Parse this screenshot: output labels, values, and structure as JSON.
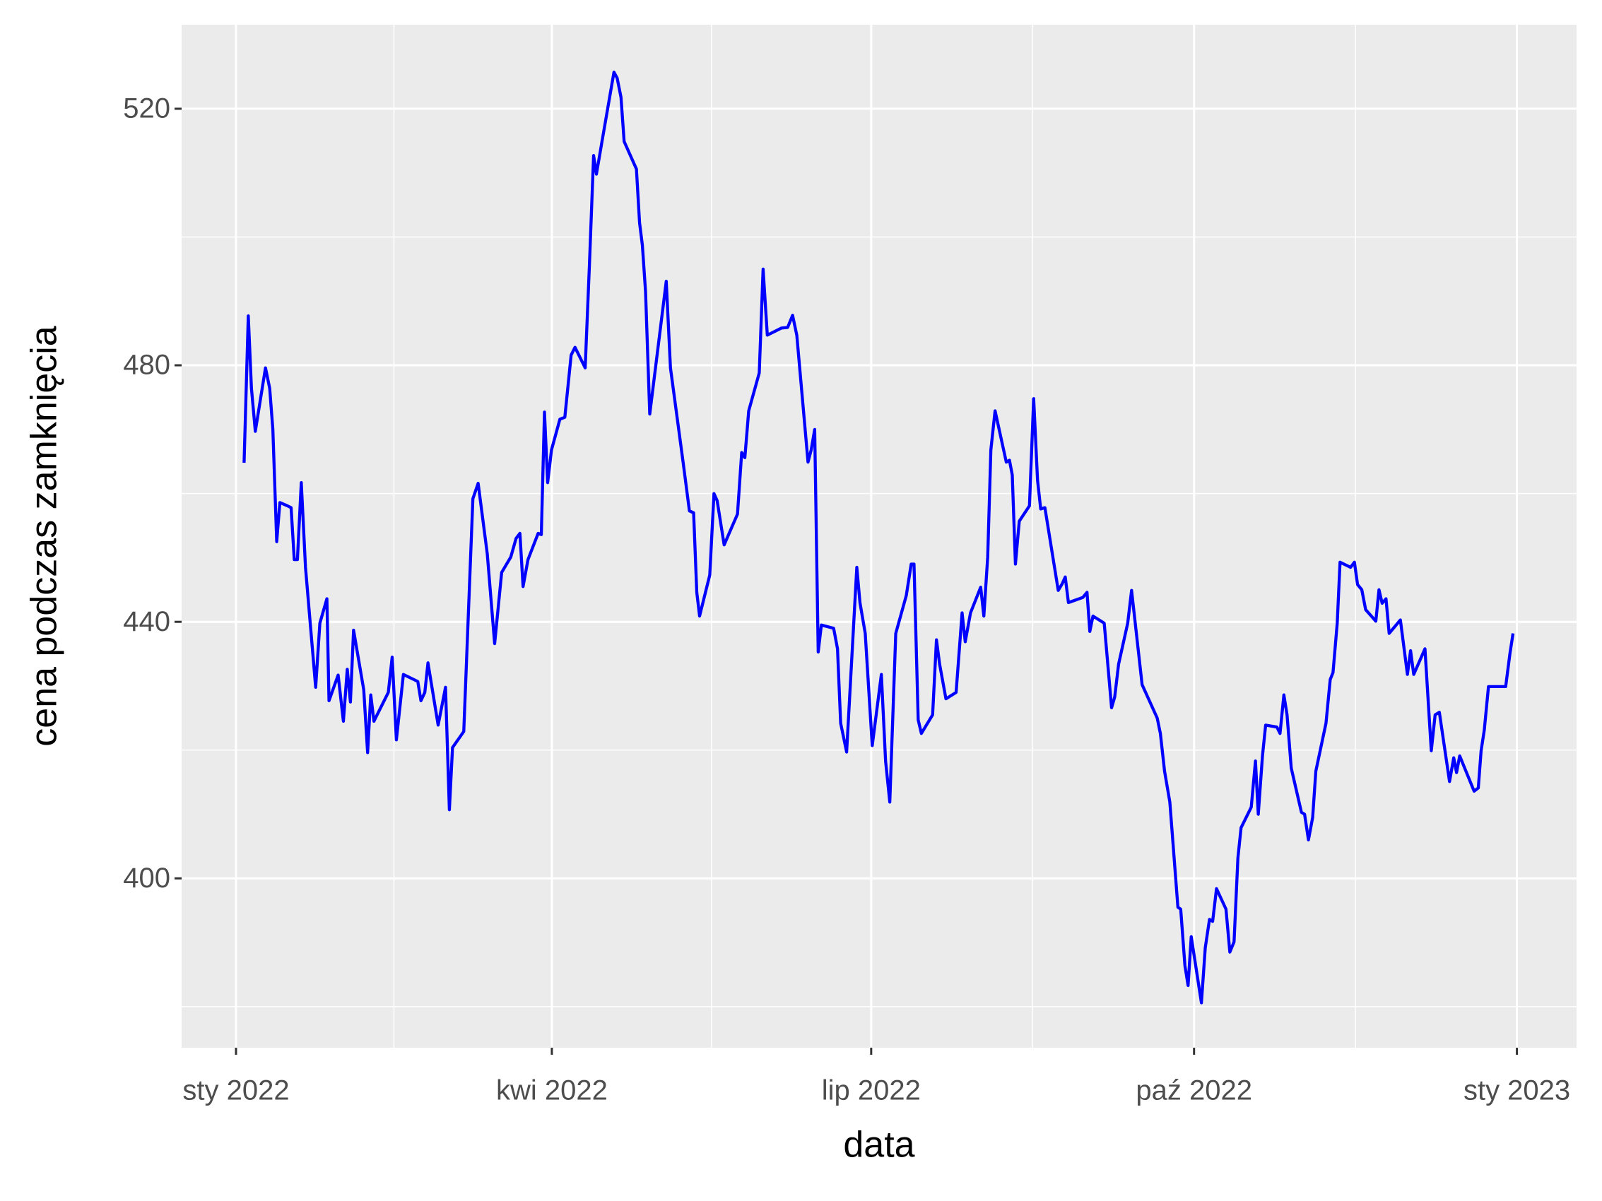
{
  "chart_data": {
    "type": "line",
    "xlabel": "data",
    "ylabel": "cena podczas zamknięcia",
    "color": "#0000ff",
    "grid": true,
    "background": "#ebebeb",
    "xlim": [
      -15.5,
      382
    ],
    "ylim": [
      373.6,
      533.1
    ],
    "xticks": [
      {
        "value": 0,
        "label": "sty 2022"
      },
      {
        "value": 90,
        "label": "kwi 2022"
      },
      {
        "value": 181,
        "label": "lip 2022"
      },
      {
        "value": 273,
        "label": "paź 2022"
      },
      {
        "value": 365,
        "label": "sty 2023"
      }
    ],
    "xminorticks": [
      45,
      135.5,
      227,
      319
    ],
    "yticks": [
      400,
      440,
      480,
      520
    ],
    "yminorticks": [
      380,
      420,
      460,
      500
    ],
    "x": [
      2.3,
      3.5,
      4.4,
      5.5,
      8.4,
      9.6,
      10.5,
      11.6,
      12.5,
      14.6,
      15.7,
      16.6,
      17.5,
      18.6,
      19.8,
      22.7,
      23.9,
      25.9,
      26.5,
      29.1,
      30.6,
      31.7,
      32.6,
      33.5,
      36.4,
      37.5,
      38.4,
      39.3,
      43.4,
      44.5,
      45.7,
      47.7,
      51.8,
      52.7,
      53.8,
      54.7,
      57.6,
      59.7,
      60.8,
      61.7,
      64.9,
      67.5,
      69,
      71.6,
      73.7,
      75.7,
      78.3,
      79.8,
      80.9,
      81.8,
      83.2,
      86.1,
      87,
      87.9,
      88.8,
      89.9,
      92.3,
      93.7,
      95.5,
      96.6,
      99.5,
      100.7,
      101.9,
      102.7,
      104.2,
      107.7,
      108.6,
      109.7,
      110.6,
      114.1,
      115,
      115.8,
      116.7,
      117.9,
      122.6,
      123.8,
      127.5,
      129.2,
      130.4,
      131.3,
      132.1,
      135,
      136.2,
      137.1,
      139.1,
      142.9,
      144.1,
      145,
      146.1,
      149.1,
      150.2,
      151.4,
      155.4,
      157.2,
      158.6,
      159.8,
      163,
      163.9,
      164.9,
      165.9,
      166.8,
      170.3,
      171.4,
      172.3,
      174,
      176.9,
      177.8,
      179.3,
      181.3,
      183.9,
      185.1,
      186.3,
      188,
      191,
      192.4,
      193.2,
      194.4,
      195.3,
      198.5,
      199.6,
      200.5,
      202.3,
      205.2,
      206.9,
      207.8,
      209.3,
      212.2,
      213.1,
      214.2,
      215.1,
      216.3,
      219.5,
      220.4,
      221.2,
      222.1,
      223.2,
      226.1,
      227.3,
      228.4,
      229.3,
      230.5,
      234.3,
      235.4,
      236.3,
      237.2,
      241.3,
      242.5,
      243.3,
      244.2,
      247.4,
      249.5,
      250.4,
      251.5,
      254.1,
      255.2,
      258.2,
      262.5,
      263.4,
      264.6,
      266.1,
      268.4,
      269.2,
      270.4,
      271.3,
      272.2,
      275.1,
      276.2,
      277.4,
      278.3,
      279.4,
      282.1,
      283.2,
      284.4,
      285.5,
      286.4,
      289.3,
      290.5,
      291.3,
      292.5,
      293.4,
      296.6,
      297.5,
      298.6,
      299.5,
      300.7,
      303.6,
      304.5,
      305.6,
      306.8,
      307.7,
      310.6,
      311.8,
      312.6,
      313.8,
      314.6,
      317.6,
      318.7,
      319.6,
      320.8,
      321.9,
      324.8,
      325.7,
      326.6,
      327.7,
      328.6,
      331.8,
      333.8,
      334.7,
      335.6,
      338.8,
      340.6,
      341.7,
      342.9,
      345.8,
      347,
      347.8,
      348.7,
      352.8,
      354,
      354.8,
      355.7,
      356.9,
      361.8,
      363,
      363.9
    ],
    "values": [
      464.8,
      487.7,
      476.4,
      469.7,
      479.6,
      476.4,
      470,
      452.5,
      458.6,
      458.1,
      457.8,
      449.7,
      449.7,
      461.7,
      448.5,
      429.8,
      439.8,
      443.6,
      427.7,
      431.7,
      424.5,
      432.6,
      427.5,
      438.7,
      429.4,
      419.6,
      428.6,
      424.5,
      429,
      434.5,
      421.6,
      431.8,
      430.7,
      427.7,
      429,
      433.6,
      423.9,
      429.8,
      410.7,
      420.4,
      422.9,
      459.2,
      461.6,
      450.6,
      436.6,
      447.7,
      450.1,
      453,
      453.8,
      445.5,
      449.7,
      453.8,
      453.6,
      472.7,
      461.7,
      466.8,
      471.6,
      471.9,
      481.6,
      482.8,
      479.6,
      495.5,
      512.7,
      509.8,
      514.6,
      525.7,
      524.8,
      521.8,
      514.9,
      510.6,
      502.2,
      498.7,
      491.5,
      472.4,
      493.1,
      479.6,
      464.5,
      457.3,
      457,
      444.6,
      440.9,
      447.3,
      460,
      458.9,
      452,
      456.8,
      466.4,
      465.6,
      472.9,
      478.8,
      495,
      484.7,
      485.8,
      485.9,
      487.8,
      484.7,
      464.9,
      466.8,
      470,
      435.3,
      439.5,
      439,
      435.8,
      424.2,
      419.7,
      448.5,
      443,
      438.2,
      420.7,
      431.8,
      418.3,
      411.9,
      438.2,
      444.1,
      449,
      449,
      424.7,
      422.6,
      425.5,
      437.2,
      433.4,
      428,
      429,
      441.4,
      436.9,
      441.4,
      445.4,
      440.9,
      450.1,
      466.8,
      472.9,
      464.9,
      465.2,
      462.9,
      449,
      455.7,
      458.1,
      474.8,
      462.1,
      457.6,
      457.8,
      444.9,
      445.9,
      447,
      443,
      443.8,
      444.6,
      438.5,
      440.9,
      439.8,
      426.6,
      428.3,
      433.4,
      439.8,
      444.9,
      430.2,
      425,
      422.6,
      416.7,
      411.9,
      395.5,
      395.2,
      386.4,
      383.3,
      390.9,
      380.6,
      389.2,
      393.6,
      393.3,
      398.4,
      395.2,
      388.5,
      390.1,
      403.2,
      407.9,
      411.1,
      418.3,
      410,
      419.1,
      423.9,
      423.6,
      422.6,
      428.6,
      425.5,
      417.2,
      410.3,
      410,
      406,
      409.5,
      416.7,
      424.2,
      431,
      432.1,
      439.8,
      449.3,
      448.5,
      449.3,
      445.8,
      445,
      441.9,
      440.1,
      445,
      442.9,
      443.6,
      438.2,
      440.3,
      431.8,
      435.5,
      431.8,
      435.8,
      419.9,
      425.5,
      425.9,
      415.1,
      418.8,
      416.5,
      419.1,
      413.6,
      414.1,
      419.9,
      423.1,
      429.9,
      429.9,
      435,
      438.2
    ]
  }
}
